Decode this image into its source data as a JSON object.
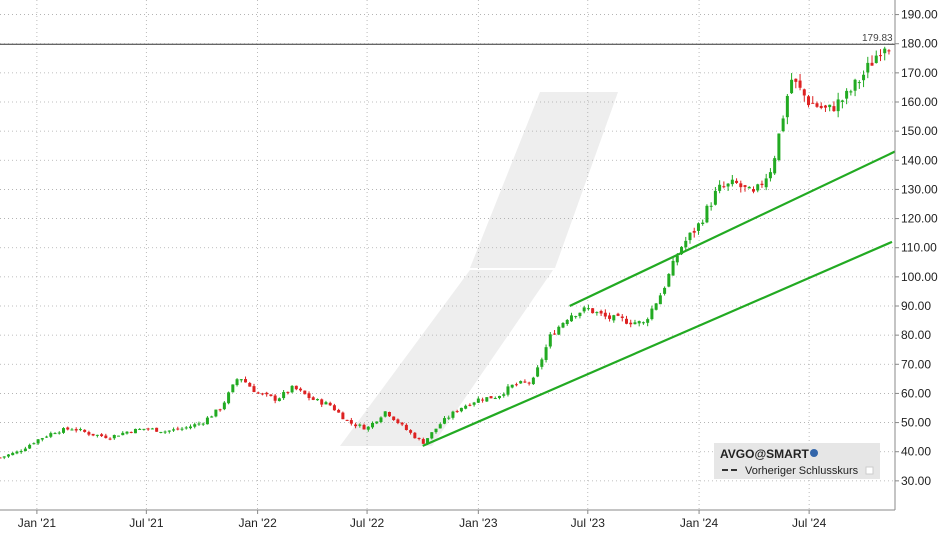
{
  "chart_data": {
    "type": "candlestick",
    "instrument": "AVGO@SMART",
    "legend": {
      "symbol_label": "AVGO@SMART",
      "prev_close_label": "Vorheriger Schlusskurs",
      "placement": "bottom-right"
    },
    "previous_close": {
      "value": 179.83,
      "label": "179.83"
    },
    "y_axis": {
      "position": "right",
      "min": 20,
      "max": 195,
      "ticks": [
        "30.00",
        "40.00",
        "50.00",
        "60.00",
        "70.00",
        "80.00",
        "90.00",
        "100.00",
        "110.00",
        "120.00",
        "130.00",
        "140.00",
        "150.00",
        "160.00",
        "170.00",
        "180.00",
        "190.00"
      ]
    },
    "x_axis": {
      "start": "2020-11-01",
      "end": "2024-11-20",
      "ticks": [
        {
          "date": "2021-01-01",
          "label": "Jan '21"
        },
        {
          "date": "2021-07-01",
          "label": "Jul '21"
        },
        {
          "date": "2022-01-01",
          "label": "Jan '22"
        },
        {
          "date": "2022-07-01",
          "label": "Jul '22"
        },
        {
          "date": "2023-01-01",
          "label": "Jan '23"
        },
        {
          "date": "2023-07-01",
          "label": "Jul '23"
        },
        {
          "date": "2024-01-01",
          "label": "Jan '24"
        },
        {
          "date": "2024-07-01",
          "label": "Jul '24"
        }
      ]
    },
    "grid": true,
    "colors": {
      "up": "#22aa22",
      "down": "#dd2222",
      "trendline": "#22aa22",
      "prev_close_line": "#333333"
    },
    "trendlines": [
      {
        "name": "channel-lower",
        "points": [
          {
            "date": "2022-10-01",
            "value": 42
          },
          {
            "date": "2024-11-15",
            "value": 112
          }
        ]
      },
      {
        "name": "channel-upper",
        "points": [
          {
            "date": "2023-06-01",
            "value": 90
          },
          {
            "date": "2024-11-20",
            "value": 143
          }
        ]
      }
    ],
    "series": [
      {
        "date": "2020-11-01",
        "close": 38
      },
      {
        "date": "2020-12-01",
        "close": 40
      },
      {
        "date": "2021-01-01",
        "close": 44
      },
      {
        "date": "2021-02-01",
        "close": 47
      },
      {
        "date": "2021-03-01",
        "close": 48
      },
      {
        "date": "2021-04-01",
        "close": 46
      },
      {
        "date": "2021-05-01",
        "close": 45
      },
      {
        "date": "2021-06-01",
        "close": 47
      },
      {
        "date": "2021-07-01",
        "close": 48
      },
      {
        "date": "2021-08-01",
        "close": 47
      },
      {
        "date": "2021-09-01",
        "close": 48
      },
      {
        "date": "2021-10-01",
        "close": 50
      },
      {
        "date": "2021-11-01",
        "close": 55
      },
      {
        "date": "2021-12-01",
        "close": 66
      },
      {
        "date": "2022-01-01",
        "close": 60
      },
      {
        "date": "2022-02-01",
        "close": 58
      },
      {
        "date": "2022-03-01",
        "close": 62
      },
      {
        "date": "2022-04-01",
        "close": 58
      },
      {
        "date": "2022-05-01",
        "close": 56
      },
      {
        "date": "2022-06-01",
        "close": 50
      },
      {
        "date": "2022-07-01",
        "close": 48
      },
      {
        "date": "2022-08-01",
        "close": 54
      },
      {
        "date": "2022-09-01",
        "close": 48
      },
      {
        "date": "2022-10-01",
        "close": 43
      },
      {
        "date": "2022-11-01",
        "close": 50
      },
      {
        "date": "2022-12-01",
        "close": 55
      },
      {
        "date": "2023-01-01",
        "close": 58
      },
      {
        "date": "2023-02-01",
        "close": 59
      },
      {
        "date": "2023-03-01",
        "close": 63
      },
      {
        "date": "2023-04-01",
        "close": 64
      },
      {
        "date": "2023-05-01",
        "close": 80
      },
      {
        "date": "2023-06-01",
        "close": 87
      },
      {
        "date": "2023-07-01",
        "close": 89
      },
      {
        "date": "2023-08-01",
        "close": 86
      },
      {
        "date": "2023-09-01",
        "close": 85
      },
      {
        "date": "2023-10-01",
        "close": 84
      },
      {
        "date": "2023-11-01",
        "close": 95
      },
      {
        "date": "2023-12-01",
        "close": 110
      },
      {
        "date": "2024-01-01",
        "close": 118
      },
      {
        "date": "2024-02-01",
        "close": 130
      },
      {
        "date": "2024-03-01",
        "close": 132
      },
      {
        "date": "2024-04-01",
        "close": 128
      },
      {
        "date": "2024-05-01",
        "close": 138
      },
      {
        "date": "2024-06-01",
        "close": 168
      },
      {
        "date": "2024-07-01",
        "close": 160
      },
      {
        "date": "2024-08-01",
        "close": 157
      },
      {
        "date": "2024-09-01",
        "close": 162
      },
      {
        "date": "2024-10-01",
        "close": 170
      },
      {
        "date": "2024-11-01",
        "close": 180
      }
    ]
  }
}
